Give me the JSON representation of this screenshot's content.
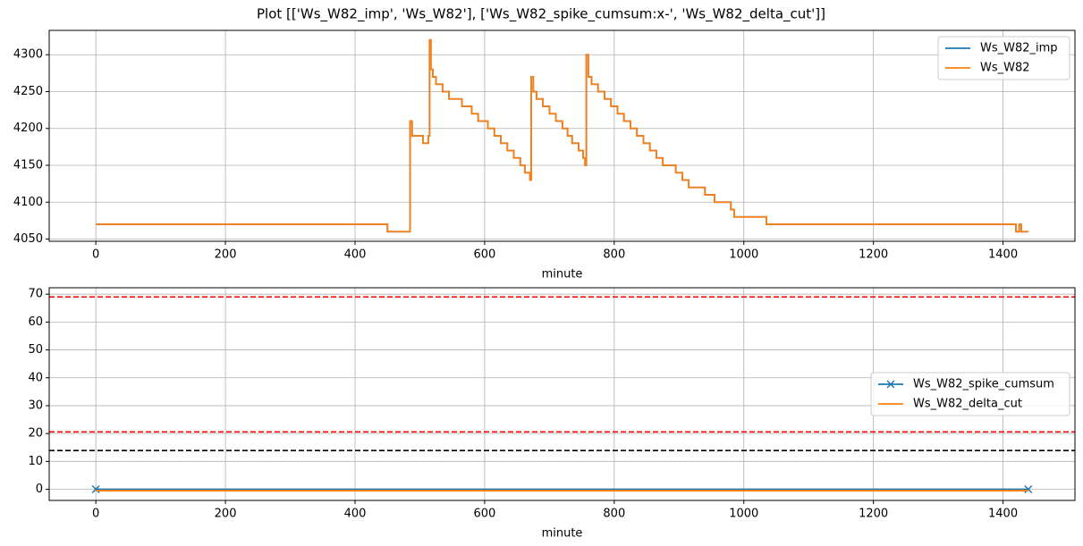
{
  "title": "Plot [['Ws_W82_imp', 'Ws_W82'], ['Ws_W82_spike_cumsum:x-', 'Ws_W82_delta_cut']]",
  "chart_data": [
    {
      "type": "line",
      "drawstyle": "steps-post",
      "xlabel": "minute",
      "grid": true,
      "legend": "upper right",
      "xlim": [
        -72,
        1511
      ],
      "xticks": [
        0,
        200,
        400,
        600,
        800,
        1000,
        1200,
        1400
      ],
      "ylim": [
        4047,
        4333
      ],
      "yticks": [
        4050,
        4100,
        4150,
        4200,
        4250,
        4300
      ],
      "x": [
        0,
        450,
        485,
        488,
        505,
        513,
        515,
        517,
        520,
        525,
        535,
        545,
        565,
        580,
        590,
        605,
        615,
        625,
        635,
        645,
        655,
        662,
        670,
        672,
        675,
        680,
        690,
        700,
        710,
        720,
        728,
        735,
        745,
        752,
        755,
        757,
        760,
        765,
        775,
        785,
        795,
        805,
        815,
        825,
        835,
        845,
        855,
        865,
        875,
        895,
        905,
        915,
        940,
        955,
        980,
        985,
        1035,
        1420,
        1425,
        1428,
        1439
      ],
      "series": [
        {
          "name": "Ws_W82_imp",
          "color": "#1f77b4",
          "values": [
            4070,
            4060,
            4210,
            4190,
            4180,
            4190,
            4320,
            4280,
            4270,
            4260,
            4250,
            4240,
            4230,
            4220,
            4210,
            4200,
            4190,
            4180,
            4170,
            4160,
            4150,
            4140,
            4130,
            4270,
            4250,
            4240,
            4230,
            4220,
            4210,
            4200,
            4190,
            4180,
            4170,
            4160,
            4150,
            4300,
            4270,
            4260,
            4250,
            4240,
            4230,
            4220,
            4210,
            4200,
            4190,
            4180,
            4170,
            4160,
            4150,
            4140,
            4130,
            4120,
            4110,
            4100,
            4090,
            4080,
            4070,
            4060,
            4070,
            4060,
            4060
          ]
        },
        {
          "name": "Ws_W82",
          "color": "#ff7f0e",
          "values": [
            4070,
            4060,
            4210,
            4190,
            4180,
            4190,
            4320,
            4280,
            4270,
            4260,
            4250,
            4240,
            4230,
            4220,
            4210,
            4200,
            4190,
            4180,
            4170,
            4160,
            4150,
            4140,
            4130,
            4270,
            4250,
            4240,
            4230,
            4220,
            4210,
            4200,
            4190,
            4180,
            4170,
            4160,
            4150,
            4300,
            4270,
            4260,
            4250,
            4240,
            4230,
            4220,
            4210,
            4200,
            4190,
            4180,
            4170,
            4160,
            4150,
            4140,
            4130,
            4120,
            4110,
            4100,
            4090,
            4080,
            4070,
            4060,
            4070,
            4060,
            4060
          ]
        }
      ]
    },
    {
      "type": "line",
      "xlabel": "minute",
      "grid": true,
      "legend": "center right",
      "xlim": [
        -72,
        1511
      ],
      "xticks": [
        0,
        200,
        400,
        600,
        800,
        1000,
        1200,
        1400
      ],
      "ylim": [
        -4,
        72.3
      ],
      "yticks": [
        0,
        10,
        20,
        30,
        40,
        50,
        60,
        70
      ],
      "x": [
        0,
        1439
      ],
      "series": [
        {
          "name": "Ws_W82_spike_cumsum",
          "color": "#1f77b4",
          "marker": "x",
          "values": [
            0,
            0
          ]
        },
        {
          "name": "Ws_W82_delta_cut",
          "color": "#ff7f0e",
          "values": [
            -0.5,
            -0.5
          ]
        }
      ],
      "hlines": [
        {
          "y": 69,
          "color": "red"
        },
        {
          "y": 20.6,
          "color": "red"
        },
        {
          "y": 13.9,
          "color": "black"
        }
      ]
    }
  ]
}
